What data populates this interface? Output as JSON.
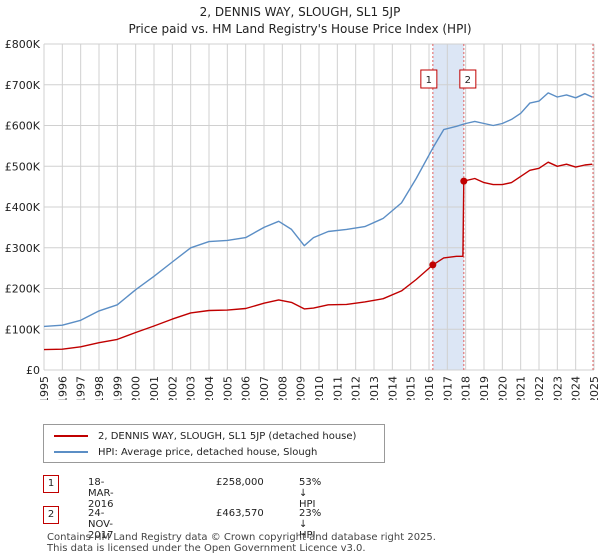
{
  "chart_data": {
    "type": "line",
    "title": "2, DENNIS WAY, SLOUGH, SL1 5JP",
    "subtitle": "Price paid vs. HM Land Registry's House Price Index (HPI)",
    "xlim": [
      1995,
      2025
    ],
    "ylim": [
      0,
      800000
    ],
    "x_ticks": [
      "1995",
      "1996",
      "1997",
      "1998",
      "1999",
      "2000",
      "2001",
      "2002",
      "2003",
      "2004",
      "2005",
      "2006",
      "2007",
      "2008",
      "2009",
      "2010",
      "2011",
      "2012",
      "2013",
      "2014",
      "2015",
      "2016",
      "2017",
      "2018",
      "2019",
      "2020",
      "2021",
      "2022",
      "2023",
      "2024",
      "2025"
    ],
    "y_ticks": [
      {
        "value": 0,
        "label": "£0"
      },
      {
        "value": 100000,
        "label": "£100K"
      },
      {
        "value": 200000,
        "label": "£200K"
      },
      {
        "value": 300000,
        "label": "£300K"
      },
      {
        "value": 400000,
        "label": "£400K"
      },
      {
        "value": 500000,
        "label": "£500K"
      },
      {
        "value": 600000,
        "label": "£600K"
      },
      {
        "value": 700000,
        "label": "£700K"
      },
      {
        "value": 800000,
        "label": "£800K"
      }
    ],
    "grid": true,
    "series": [
      {
        "name": "2, DENNIS WAY, SLOUGH, SL1 5JP (detached house)",
        "color": "#c00000",
        "points": [
          [
            1995.0,
            50000
          ],
          [
            1996.0,
            51000
          ],
          [
            1997.0,
            57000
          ],
          [
            1998.0,
            67000
          ],
          [
            1999.0,
            75000
          ],
          [
            2000.0,
            92000
          ],
          [
            2001.0,
            108000
          ],
          [
            2002.0,
            125000
          ],
          [
            2003.0,
            140000
          ],
          [
            2004.0,
            146000
          ],
          [
            2005.0,
            147000
          ],
          [
            2006.0,
            151000
          ],
          [
            2007.0,
            164000
          ],
          [
            2007.8,
            172000
          ],
          [
            2008.5,
            166000
          ],
          [
            2009.2,
            150000
          ],
          [
            2009.7,
            152000
          ],
          [
            2010.5,
            160000
          ],
          [
            2011.5,
            161000
          ],
          [
            2012.5,
            167000
          ],
          [
            2013.5,
            175000
          ],
          [
            2014.5,
            194000
          ],
          [
            2015.3,
            222000
          ],
          [
            2016.21,
            258000
          ],
          [
            2016.8,
            275000
          ],
          [
            2017.5,
            279000
          ],
          [
            2017.85,
            279000
          ],
          [
            2017.9,
            463570
          ],
          [
            2018.5,
            470000
          ],
          [
            2019.0,
            460000
          ],
          [
            2019.5,
            455000
          ],
          [
            2020.0,
            455000
          ],
          [
            2020.5,
            460000
          ],
          [
            2021.0,
            475000
          ],
          [
            2021.5,
            490000
          ],
          [
            2022.0,
            495000
          ],
          [
            2022.5,
            510000
          ],
          [
            2023.0,
            500000
          ],
          [
            2023.5,
            505000
          ],
          [
            2024.0,
            498000
          ],
          [
            2024.5,
            503000
          ],
          [
            2024.9,
            505000
          ]
        ]
      },
      {
        "name": "HPI: Average price, detached house, Slough",
        "color": "#5b8ec5",
        "points": [
          [
            1995.0,
            107000
          ],
          [
            1996.0,
            110000
          ],
          [
            1997.0,
            122000
          ],
          [
            1998.0,
            145000
          ],
          [
            1999.0,
            160000
          ],
          [
            2000.0,
            197000
          ],
          [
            2001.0,
            230000
          ],
          [
            2002.0,
            265000
          ],
          [
            2003.0,
            300000
          ],
          [
            2004.0,
            315000
          ],
          [
            2005.0,
            318000
          ],
          [
            2006.0,
            325000
          ],
          [
            2007.0,
            350000
          ],
          [
            2007.8,
            365000
          ],
          [
            2008.5,
            345000
          ],
          [
            2009.2,
            305000
          ],
          [
            2009.7,
            325000
          ],
          [
            2010.5,
            340000
          ],
          [
            2011.5,
            345000
          ],
          [
            2012.5,
            352000
          ],
          [
            2013.5,
            372000
          ],
          [
            2014.5,
            410000
          ],
          [
            2015.3,
            470000
          ],
          [
            2016.21,
            545000
          ],
          [
            2016.8,
            590000
          ],
          [
            2017.5,
            598000
          ],
          [
            2018.0,
            605000
          ],
          [
            2018.5,
            610000
          ],
          [
            2019.0,
            605000
          ],
          [
            2019.5,
            600000
          ],
          [
            2020.0,
            605000
          ],
          [
            2020.5,
            615000
          ],
          [
            2021.0,
            630000
          ],
          [
            2021.5,
            655000
          ],
          [
            2022.0,
            660000
          ],
          [
            2022.5,
            680000
          ],
          [
            2023.0,
            670000
          ],
          [
            2023.5,
            675000
          ],
          [
            2024.0,
            668000
          ],
          [
            2024.5,
            678000
          ],
          [
            2024.9,
            670000
          ]
        ]
      }
    ],
    "transactions": [
      {
        "id": "1",
        "date": "18-MAR-2016",
        "x": 2016.21,
        "price_label": "£258,000",
        "price": 258000,
        "hpi_label": "53% ↓ HPI"
      },
      {
        "id": "2",
        "date": "24-NOV-2017",
        "x": 2017.9,
        "price_label": "£463,570",
        "price": 463570,
        "hpi_label": "23% ↓ HPI"
      }
    ],
    "legend_position": "below"
  },
  "colors": {
    "property": "#c00000",
    "hpi": "#5b8ec5",
    "shade": "#dce6f5",
    "grid": "#d0d0d0",
    "marker_line": "#e06060"
  },
  "footer": {
    "line1": "Contains HM Land Registry data © Crown copyright and database right 2025.",
    "line2": "This data is licensed under the Open Government Licence v3.0."
  }
}
